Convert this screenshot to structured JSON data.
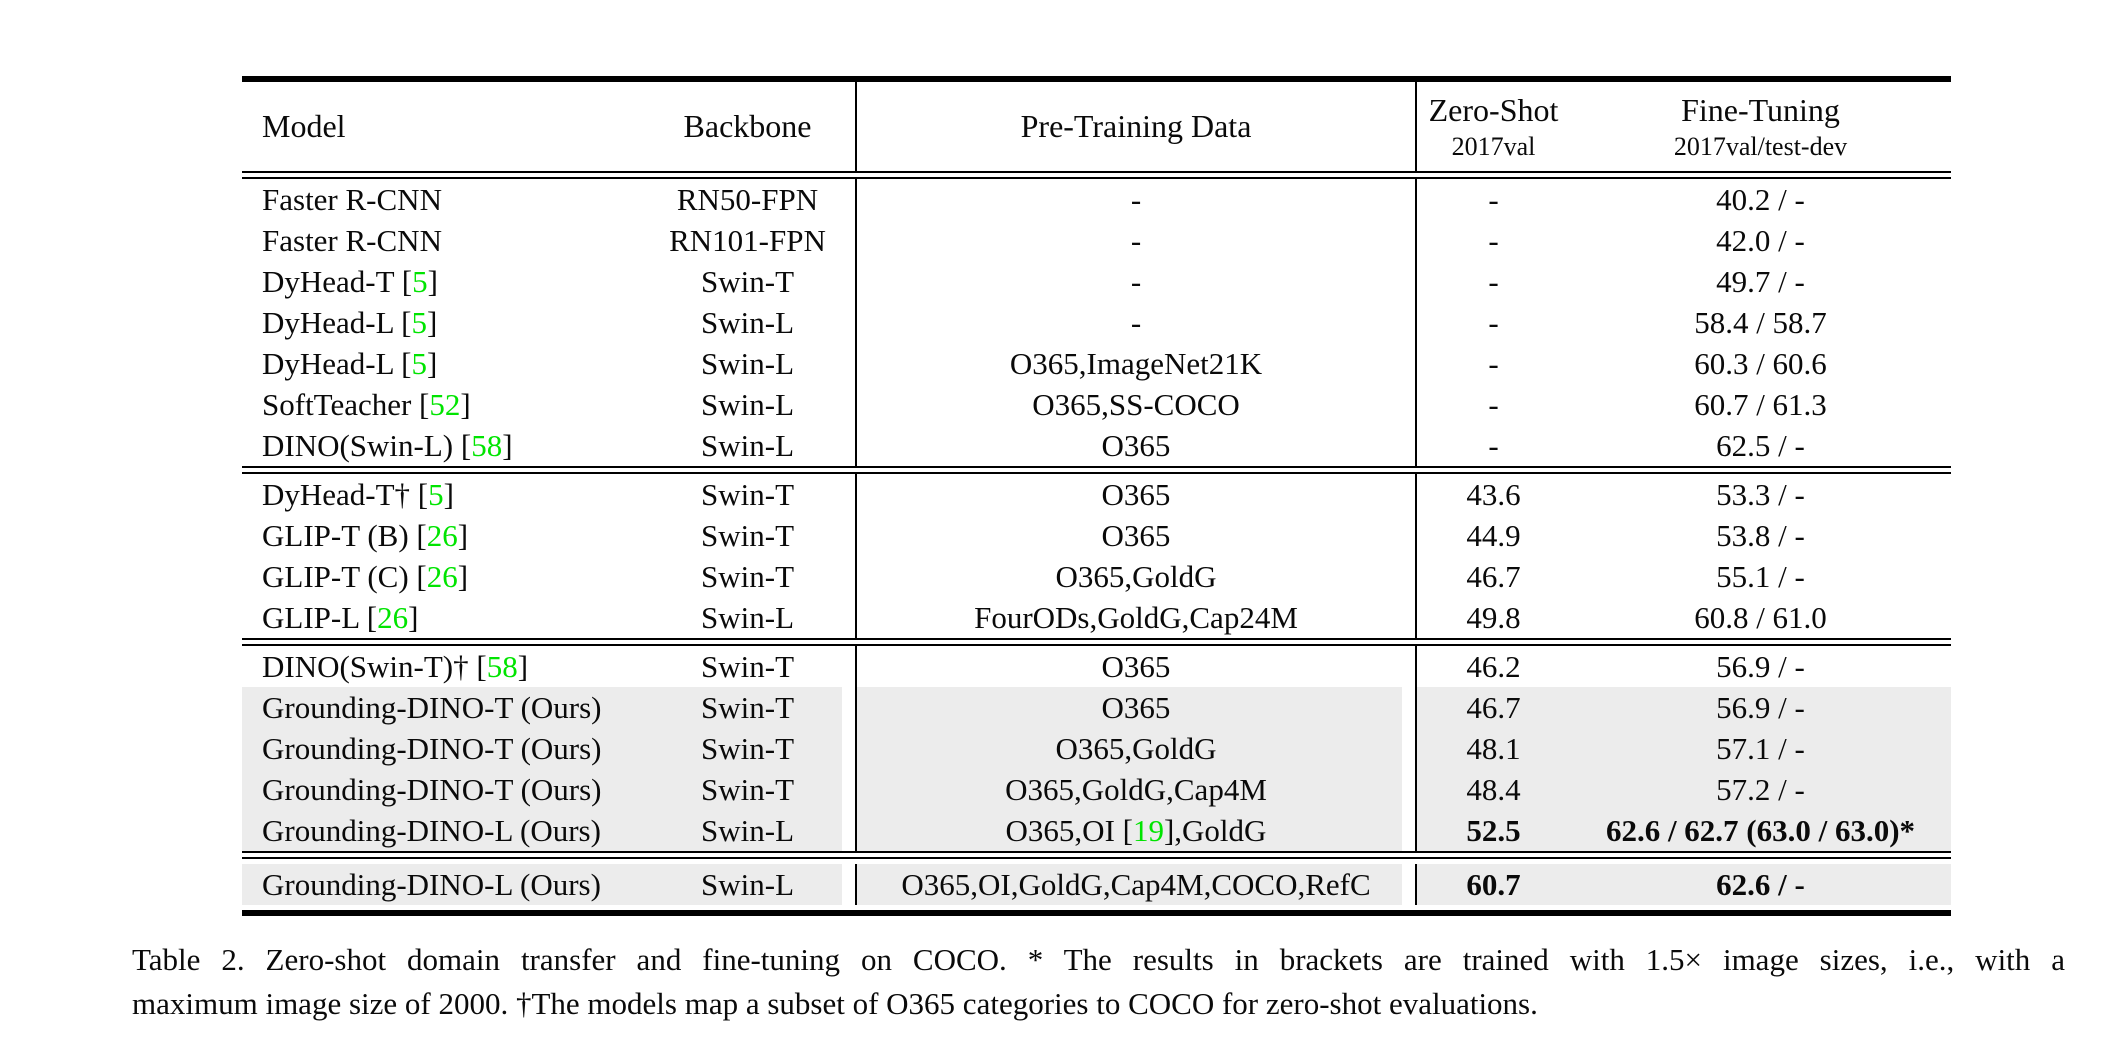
{
  "colors": {
    "citation_green": "#00E400",
    "row_highlight_gray": "#ECECEC",
    "text": "#0a0a0a"
  },
  "table": {
    "headers": {
      "model": "Model",
      "backbone": "Backbone",
      "pretrain": "Pre-Training Data",
      "zero_shot_title": "Zero-Shot",
      "zero_shot_sub": "2017val",
      "fine_tuning_title": "Fine-Tuning",
      "fine_tuning_sub": "2017val/test-dev"
    },
    "sections": [
      {
        "final": false,
        "rows": [
          {
            "model": "Faster R-CNN",
            "backbone": "RN50-FPN",
            "pretrain": "-",
            "zero_shot": "-",
            "fine_tuning": "40.2 / -",
            "highlight": false,
            "bold_zs": false,
            "bold_ft": false
          },
          {
            "model": "Faster R-CNN",
            "backbone": "RN101-FPN",
            "pretrain": "-",
            "zero_shot": "-",
            "fine_tuning": "42.0 / -",
            "highlight": false,
            "bold_zs": false,
            "bold_ft": false
          },
          {
            "model": "DyHead-T [5]",
            "backbone": "Swin-T",
            "pretrain": "-",
            "zero_shot": "-",
            "fine_tuning": "49.7 / -",
            "highlight": false,
            "bold_zs": false,
            "bold_ft": false
          },
          {
            "model": "DyHead-L [5]",
            "backbone": "Swin-L",
            "pretrain": "-",
            "zero_shot": "-",
            "fine_tuning": "58.4 / 58.7",
            "highlight": false,
            "bold_zs": false,
            "bold_ft": false
          },
          {
            "model": "DyHead-L [5]",
            "backbone": "Swin-L",
            "pretrain": "O365,ImageNet21K",
            "zero_shot": "-",
            "fine_tuning": "60.3 / 60.6",
            "highlight": false,
            "bold_zs": false,
            "bold_ft": false
          },
          {
            "model": "SoftTeacher [52]",
            "backbone": "Swin-L",
            "pretrain": "O365,SS-COCO",
            "zero_shot": "-",
            "fine_tuning": "60.7 / 61.3",
            "highlight": false,
            "bold_zs": false,
            "bold_ft": false
          },
          {
            "model": "DINO(Swin-L) [58]",
            "backbone": "Swin-L",
            "pretrain": "O365",
            "zero_shot": "-",
            "fine_tuning": "62.5 / -",
            "highlight": false,
            "bold_zs": false,
            "bold_ft": false
          }
        ]
      },
      {
        "final": false,
        "rows": [
          {
            "model": "DyHead-T† [5]",
            "backbone": "Swin-T",
            "pretrain": "O365",
            "zero_shot": "43.6",
            "fine_tuning": "53.3 / -",
            "highlight": false,
            "bold_zs": false,
            "bold_ft": false
          },
          {
            "model": "GLIP-T (B) [26]",
            "backbone": "Swin-T",
            "pretrain": "O365",
            "zero_shot": "44.9",
            "fine_tuning": "53.8 / -",
            "highlight": false,
            "bold_zs": false,
            "bold_ft": false
          },
          {
            "model": "GLIP-T (C) [26]",
            "backbone": "Swin-T",
            "pretrain": "O365,GoldG",
            "zero_shot": "46.7",
            "fine_tuning": "55.1 / -",
            "highlight": false,
            "bold_zs": false,
            "bold_ft": false
          },
          {
            "model": "GLIP-L [26]",
            "backbone": "Swin-L",
            "pretrain": "FourODs,GoldG,Cap24M",
            "zero_shot": "49.8",
            "fine_tuning": "60.8 / 61.0",
            "highlight": false,
            "bold_zs": false,
            "bold_ft": false
          }
        ]
      },
      {
        "final": false,
        "rows": [
          {
            "model": "DINO(Swin-T)† [58]",
            "backbone": "Swin-T",
            "pretrain": "O365",
            "zero_shot": "46.2",
            "fine_tuning": "56.9 / -",
            "highlight": false,
            "bold_zs": false,
            "bold_ft": false
          },
          {
            "model": "Grounding-DINO-T (Ours)",
            "backbone": "Swin-T",
            "pretrain": "O365",
            "zero_shot": "46.7",
            "fine_tuning": "56.9 / -",
            "highlight": true,
            "bold_zs": false,
            "bold_ft": false
          },
          {
            "model": "Grounding-DINO-T (Ours)",
            "backbone": "Swin-T",
            "pretrain": "O365,GoldG",
            "zero_shot": "48.1",
            "fine_tuning": "57.1 / -",
            "highlight": true,
            "bold_zs": false,
            "bold_ft": false
          },
          {
            "model": "Grounding-DINO-T (Ours)",
            "backbone": "Swin-T",
            "pretrain": "O365,GoldG,Cap4M",
            "zero_shot": "48.4",
            "fine_tuning": "57.2 / -",
            "highlight": true,
            "bold_zs": false,
            "bold_ft": false
          },
          {
            "model": "Grounding-DINO-L (Ours)",
            "backbone": "Swin-L",
            "pretrain": "O365,OI [19],GoldG",
            "zero_shot": "52.5",
            "fine_tuning": "62.6 / 62.7 (63.0 / 63.0)*",
            "highlight": true,
            "bold_zs": true,
            "bold_ft": true
          }
        ]
      },
      {
        "final": true,
        "rows": [
          {
            "model": "Grounding-DINO-L (Ours)",
            "backbone": "Swin-L",
            "pretrain": "O365,OI,GoldG,Cap4M,COCO,RefC",
            "zero_shot": "60.7",
            "fine_tuning": "62.6 / -",
            "highlight": true,
            "bold_zs": true,
            "bold_ft": true
          }
        ]
      }
    ]
  },
  "caption": {
    "line1": "Table 2.  Zero-shot domain transfer and fine-tuning on COCO. * The results in brackets are trained with 1.5× image sizes, i.e., with a",
    "line2": "maximum image size of 2000. †The models map a subset of O365 categories to COCO for zero-shot evaluations."
  }
}
